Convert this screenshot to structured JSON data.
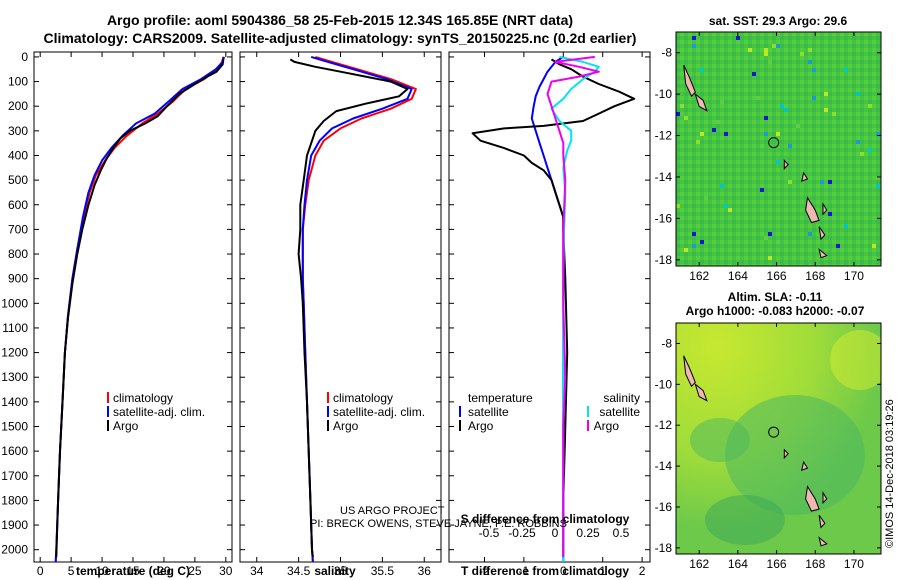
{
  "title": {
    "line1": "Argo profile: aoml 5904386_58 25-Feb-2015 12.34S 165.85E (NRT data)",
    "line2": "Climatology: CARS2009. Satellite-adjusted climatology: synTS_20150225.nc (0.2d earlier)"
  },
  "colors": {
    "climatology": "#ff0000",
    "satellite": "#0000ff",
    "argo": "#000000",
    "sal_sat": "#00e5ee",
    "sal_argo": "#ee00ee",
    "land": "#f0b8b0"
  },
  "chart_data": [
    {
      "type": "line",
      "id": "temperature",
      "xlabel": "temperature (deg C)",
      "ylabel": "",
      "xlim": [
        -1,
        31
      ],
      "ylim": [
        2050,
        -20
      ],
      "xticks": [
        0,
        5,
        10,
        15,
        20,
        25,
        30
      ],
      "yticks": [
        0,
        100,
        200,
        300,
        400,
        500,
        600,
        700,
        800,
        900,
        1000,
        1100,
        1200,
        1300,
        1400,
        1500,
        1600,
        1700,
        1800,
        1900,
        2000
      ],
      "legend": [
        "climatology",
        "satellite-adj. clim.",
        "Argo"
      ],
      "series": [
        {
          "name": "climatology",
          "color": "#ff0000",
          "points": [
            [
              29.6,
              0
            ],
            [
              29.4,
              20
            ],
            [
              28.6,
              50
            ],
            [
              26.5,
              90
            ],
            [
              23.5,
              130
            ],
            [
              21.5,
              180
            ],
            [
              19.0,
              230
            ],
            [
              16.5,
              270
            ],
            [
              14.0,
              320
            ],
            [
              12.0,
              370
            ],
            [
              10.5,
              420
            ],
            [
              9.0,
              480
            ],
            [
              8.0,
              550
            ],
            [
              7.0,
              650
            ],
            [
              6.0,
              780
            ],
            [
              5.2,
              900
            ],
            [
              4.5,
              1050
            ],
            [
              4.0,
              1200
            ],
            [
              3.6,
              1400
            ],
            [
              3.2,
              1600
            ],
            [
              2.9,
              1800
            ],
            [
              2.6,
              2000
            ],
            [
              2.5,
              2050
            ]
          ]
        },
        {
          "name": "satellite-adj. clim.",
          "color": "#0000ff",
          "points": [
            [
              29.7,
              0
            ],
            [
              29.5,
              20
            ],
            [
              28.4,
              50
            ],
            [
              26.0,
              90
            ],
            [
              23.0,
              130
            ],
            [
              20.8,
              180
            ],
            [
              18.5,
              230
            ],
            [
              15.5,
              270
            ],
            [
              13.3,
              320
            ],
            [
              11.5,
              370
            ],
            [
              10.0,
              420
            ],
            [
              8.8,
              480
            ],
            [
              7.8,
              550
            ],
            [
              6.9,
              650
            ],
            [
              6.0,
              780
            ],
            [
              5.2,
              900
            ],
            [
              4.5,
              1050
            ],
            [
              4.0,
              1200
            ],
            [
              3.6,
              1400
            ],
            [
              3.2,
              1600
            ],
            [
              2.9,
              1800
            ],
            [
              2.6,
              2000
            ],
            [
              2.5,
              2050
            ]
          ]
        },
        {
          "name": "Argo",
          "color": "#000000",
          "points": [
            [
              29.6,
              10
            ],
            [
              29.5,
              30
            ],
            [
              28.5,
              60
            ],
            [
              27.0,
              80
            ],
            [
              25.0,
              110
            ],
            [
              22.5,
              150
            ],
            [
              20.5,
              200
            ],
            [
              19.0,
              240
            ],
            [
              17.0,
              270
            ],
            [
              14.5,
              300
            ],
            [
              13.0,
              330
            ],
            [
              11.8,
              370
            ],
            [
              10.8,
              410
            ],
            [
              9.8,
              460
            ],
            [
              8.8,
              520
            ],
            [
              7.8,
              600
            ],
            [
              6.8,
              700
            ],
            [
              6.0,
              800
            ],
            [
              5.2,
              920
            ],
            [
              4.5,
              1060
            ],
            [
              4.0,
              1200
            ],
            [
              3.6,
              1400
            ],
            [
              3.2,
              1600
            ],
            [
              2.9,
              1800
            ],
            [
              2.7,
              1950
            ],
            [
              2.6,
              2030
            ]
          ]
        }
      ]
    },
    {
      "type": "line",
      "id": "salinity",
      "xlabel": "salinity",
      "ylabel": "",
      "xlim": [
        33.8,
        36.2
      ],
      "ylim": [
        2050,
        -20
      ],
      "xticks": [
        34,
        34.5,
        35,
        35.5,
        36
      ],
      "legend": [
        "climatology",
        "satellite-adj. clim.",
        "Argo"
      ],
      "series": [
        {
          "name": "climatology",
          "color": "#ff0000",
          "points": [
            [
              34.7,
              0
            ],
            [
              34.9,
              20
            ],
            [
              35.2,
              50
            ],
            [
              35.6,
              90
            ],
            [
              35.9,
              130
            ],
            [
              35.85,
              170
            ],
            [
              35.6,
              210
            ],
            [
              35.25,
              250
            ],
            [
              35.0,
              290
            ],
            [
              34.8,
              340
            ],
            [
              34.7,
              400
            ],
            [
              34.62,
              500
            ],
            [
              34.58,
              600
            ],
            [
              34.55,
              700
            ],
            [
              34.55,
              800
            ],
            [
              34.55,
              900
            ],
            [
              34.56,
              1000
            ],
            [
              34.58,
              1200
            ],
            [
              34.6,
              1400
            ],
            [
              34.62,
              1600
            ],
            [
              34.64,
              1800
            ],
            [
              34.66,
              2000
            ],
            [
              34.67,
              2050
            ]
          ]
        },
        {
          "name": "satellite-adj. clim.",
          "color": "#0000ff",
          "points": [
            [
              34.65,
              0
            ],
            [
              34.85,
              20
            ],
            [
              35.15,
              50
            ],
            [
              35.55,
              90
            ],
            [
              35.85,
              130
            ],
            [
              35.8,
              170
            ],
            [
              35.5,
              210
            ],
            [
              35.15,
              250
            ],
            [
              34.9,
              290
            ],
            [
              34.75,
              340
            ],
            [
              34.65,
              400
            ],
            [
              34.6,
              500
            ],
            [
              34.57,
              600
            ],
            [
              34.55,
              700
            ],
            [
              34.55,
              800
            ],
            [
              34.55,
              900
            ],
            [
              34.56,
              1000
            ],
            [
              34.58,
              1200
            ],
            [
              34.6,
              1400
            ],
            [
              34.62,
              1600
            ],
            [
              34.64,
              1800
            ],
            [
              34.66,
              2000
            ],
            [
              34.67,
              2050
            ]
          ]
        },
        {
          "name": "Argo",
          "color": "#000000",
          "points": [
            [
              34.4,
              10
            ],
            [
              34.45,
              20
            ],
            [
              34.7,
              40
            ],
            [
              35.0,
              60
            ],
            [
              35.3,
              80
            ],
            [
              35.6,
              100
            ],
            [
              35.8,
              130
            ],
            [
              35.7,
              160
            ],
            [
              35.3,
              190
            ],
            [
              34.95,
              220
            ],
            [
              34.8,
              260
            ],
            [
              34.7,
              300
            ],
            [
              34.65,
              350
            ],
            [
              34.6,
              400
            ],
            [
              34.56,
              500
            ],
            [
              34.52,
              600
            ],
            [
              34.52,
              700
            ],
            [
              34.5,
              800
            ],
            [
              34.53,
              900
            ],
            [
              34.55,
              1000
            ],
            [
              34.57,
              1200
            ],
            [
              34.6,
              1400
            ],
            [
              34.62,
              1600
            ],
            [
              34.64,
              1800
            ],
            [
              34.66,
              2000
            ],
            [
              34.67,
              2030
            ]
          ]
        }
      ]
    },
    {
      "type": "line",
      "id": "difference",
      "xlabel": "T difference from climatology",
      "x2label": "S difference from climatology",
      "xlim": [
        -2.9,
        2.2
      ],
      "ylim": [
        2050,
        -20
      ],
      "xticks": [
        -2,
        -1,
        0,
        1,
        2
      ],
      "x2ticks_labels": [
        "-0.5",
        "-0.25",
        "0",
        "0.25",
        "0.5"
      ],
      "legend": [
        "temperature",
        "satellite",
        "Argo",
        "salinity",
        "satellite",
        "Argo"
      ],
      "series": [
        {
          "name": "temperature satellite",
          "color": "#0000ff",
          "points": [
            [
              0,
              0
            ],
            [
              -0.1,
              10
            ],
            [
              -0.2,
              20
            ],
            [
              -0.3,
              40
            ],
            [
              -0.4,
              60
            ],
            [
              -0.5,
              90
            ],
            [
              -0.6,
              120
            ],
            [
              -0.7,
              160
            ],
            [
              -0.75,
              200
            ],
            [
              -0.8,
              250
            ],
            [
              -0.7,
              300
            ],
            [
              -0.6,
              350
            ],
            [
              -0.5,
              400
            ],
            [
              -0.4,
              450
            ],
            [
              -0.3,
              500
            ],
            [
              -0.2,
              550
            ],
            [
              -0.1,
              600
            ],
            [
              0,
              650
            ],
            [
              0,
              2050
            ]
          ]
        },
        {
          "name": "temperature Argo",
          "color": "#000000",
          "points": [
            [
              -0.3,
              10
            ],
            [
              -0.1,
              30
            ],
            [
              0.2,
              50
            ],
            [
              0.5,
              80
            ],
            [
              0.9,
              110
            ],
            [
              1.4,
              140
            ],
            [
              1.8,
              170
            ],
            [
              1.3,
              200
            ],
            [
              0.9,
              230
            ],
            [
              0.5,
              260
            ],
            [
              -0.5,
              280
            ],
            [
              -1.5,
              290
            ],
            [
              -2.3,
              310
            ],
            [
              -2.1,
              340
            ],
            [
              -1.5,
              370
            ],
            [
              -1.0,
              400
            ],
            [
              -0.8,
              430
            ],
            [
              -0.5,
              460
            ],
            [
              -0.3,
              500
            ],
            [
              -0.2,
              550
            ],
            [
              -0.1,
              600
            ],
            [
              0,
              650
            ],
            [
              0,
              700
            ],
            [
              0.05,
              900
            ],
            [
              0.1,
              1200
            ],
            [
              0.05,
              1500
            ],
            [
              0,
              1800
            ],
            [
              0,
              2030
            ]
          ]
        },
        {
          "name": "salinity satellite",
          "color": "#00e5ee",
          "points": [
            [
              -0.1,
              0
            ],
            [
              0.5,
              20
            ],
            [
              0.9,
              40
            ],
            [
              0.8,
              60
            ],
            [
              0.5,
              90
            ],
            [
              0.2,
              130
            ],
            [
              0,
              170
            ],
            [
              -0.3,
              210
            ],
            [
              -0.1,
              260
            ],
            [
              0.2,
              300
            ],
            [
              0.2,
              340
            ],
            [
              0.1,
              380
            ],
            [
              0,
              450
            ],
            [
              0.05,
              550
            ],
            [
              0.02,
              700
            ],
            [
              0,
              900
            ],
            [
              0,
              2050
            ]
          ]
        },
        {
          "name": "salinity Argo",
          "color": "#ee00ee",
          "points": [
            [
              0.8,
              0
            ],
            [
              0.3,
              10
            ],
            [
              -0.2,
              20
            ],
            [
              0.4,
              40
            ],
            [
              0.9,
              60
            ],
            [
              0.4,
              80
            ],
            [
              -0.3,
              100
            ],
            [
              -0.4,
              150
            ],
            [
              -0.3,
              200
            ],
            [
              -0.2,
              250
            ],
            [
              -0.1,
              300
            ],
            [
              0,
              350
            ],
            [
              0,
              400
            ],
            [
              0.05,
              500
            ],
            [
              0,
              700
            ],
            [
              0,
              1000
            ],
            [
              0.05,
              1300
            ],
            [
              0,
              1500
            ],
            [
              0,
              2030
            ]
          ]
        }
      ]
    }
  ],
  "texts": {
    "leg_clim": "climatology",
    "leg_sat": "satellite-adj. clim.",
    "leg_argo": "Argo",
    "leg_temp": "temperature",
    "leg_salt": "salinity",
    "leg_satellite": "satellite",
    "project_line1": "US ARGO PROJECT",
    "project_line2": "PI: BRECK OWENS, STEVE JAYNE, P.E. ROBBINS"
  },
  "maps": {
    "sst_title": "sat. SST: 29.3 Argo: 29.6",
    "sla_title1": "Altim. SLA: -0.11",
    "sla_title2": "Argo h1000: -0.083 h2000: -0.07",
    "lon_ticks": [
      "162",
      "164",
      "166",
      "168",
      "170"
    ],
    "lat_ticks": [
      "-8",
      "-10",
      "-12",
      "-14",
      "-16",
      "-18"
    ],
    "lon_range": [
      160.8,
      171.4
    ],
    "lat_range": [
      -7,
      -18.3
    ],
    "float_position": [
      165.85,
      -12.34
    ]
  },
  "watermark": "©IMOS 14-Dec-2018 03:19:26"
}
